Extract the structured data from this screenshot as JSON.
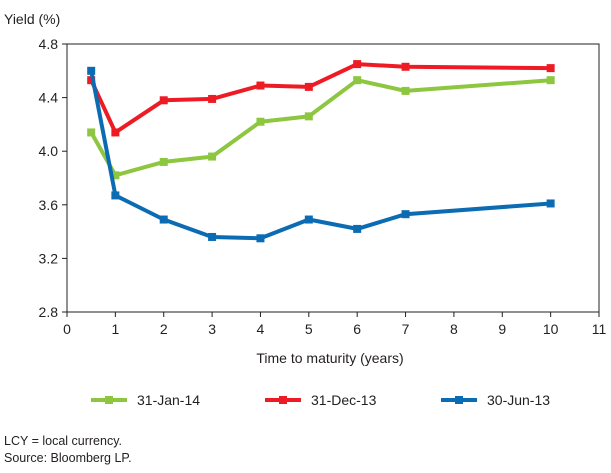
{
  "chart_data": {
    "type": "line",
    "ylabel": "Yield (%)",
    "xlabel": "Time to maturity (years)",
    "xlim": [
      0,
      11
    ],
    "ylim": [
      2.8,
      4.8
    ],
    "x_ticks": [
      "0",
      "1",
      "2",
      "3",
      "4",
      "5",
      "6",
      "7",
      "8",
      "9",
      "10",
      "11"
    ],
    "y_ticks": [
      "2.8",
      "3.2",
      "3.6",
      "4.0",
      "4.4",
      "4.8"
    ],
    "grid": false,
    "legend_position": "bottom",
    "series": [
      {
        "name": "31-Jan-14",
        "color": "#8dc63f",
        "points": [
          [
            0.5,
            4.14
          ],
          [
            1,
            3.82
          ],
          [
            2,
            3.92
          ],
          [
            3,
            3.96
          ],
          [
            4,
            4.22
          ],
          [
            5,
            4.26
          ],
          [
            6,
            4.53
          ],
          [
            7,
            4.45
          ],
          [
            10,
            4.53
          ]
        ]
      },
      {
        "name": "31-Dec-13",
        "color": "#ed1c24",
        "points": [
          [
            0.5,
            4.53
          ],
          [
            1,
            4.14
          ],
          [
            2,
            4.38
          ],
          [
            3,
            4.39
          ],
          [
            4,
            4.49
          ],
          [
            5,
            4.48
          ],
          [
            6,
            4.65
          ],
          [
            7,
            4.63
          ],
          [
            10,
            4.62
          ]
        ]
      },
      {
        "name": "30-Jun-13",
        "color": "#0b6cb3",
        "points": [
          [
            0.5,
            4.6
          ],
          [
            1,
            3.67
          ],
          [
            2,
            3.49
          ],
          [
            3,
            3.36
          ],
          [
            4,
            3.35
          ],
          [
            5,
            3.49
          ],
          [
            6,
            3.42
          ],
          [
            7,
            3.53
          ],
          [
            10,
            3.61
          ]
        ]
      }
    ]
  },
  "notes": {
    "line1": "LCY = local currency.",
    "line2": "Source: Bloomberg LP."
  }
}
